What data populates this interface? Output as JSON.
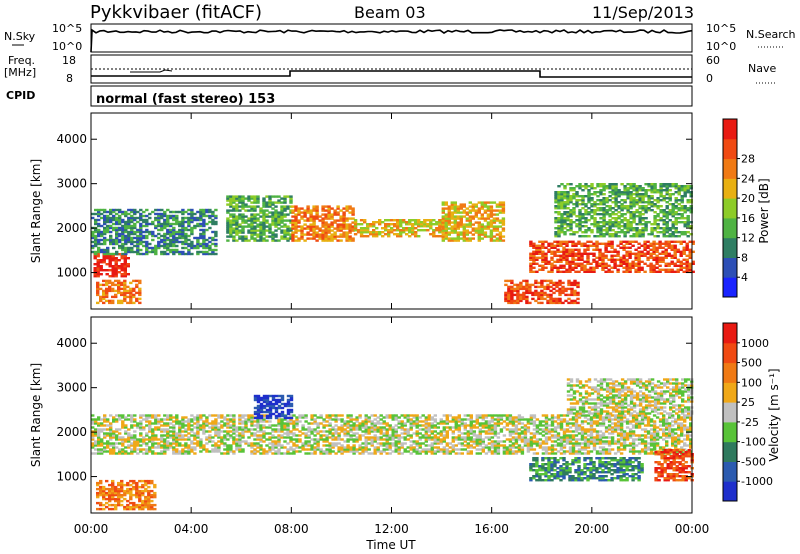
{
  "header": {
    "title": "Pykkvibaer (fitACF)",
    "beam": "Beam 03",
    "date": "11/Sep/2013"
  },
  "status_panels": {
    "nsky_label": "N.Sky",
    "nsky_ticks": [
      "10^5",
      "10^0"
    ],
    "nsearch_label": "N.Search",
    "nsearch_ticks": [
      "10^5",
      "10^0"
    ],
    "freq_label": [
      "Freq.",
      "[MHz]"
    ],
    "freq_ticks": [
      "18",
      "8"
    ],
    "nave_label": "Nave",
    "nave_ticks": [
      "60",
      "0"
    ],
    "cpid_label": "CPID",
    "mode_text": "normal (fast stereo) 153"
  },
  "chart_data": [
    {
      "type": "heatmap",
      "name": "power",
      "ylabel": "Slant Range [km]",
      "xlabel": "Time UT",
      "x_ticks": [
        "00:00",
        "04:00",
        "08:00",
        "12:00",
        "16:00",
        "20:00",
        "00:00"
      ],
      "xlim_hours": [
        0,
        24
      ],
      "y_ticks": [
        "1000",
        "2000",
        "3000",
        "4000"
      ],
      "ylim_km": [
        180,
        4590
      ],
      "colorbar": {
        "label": "Power [dB]",
        "ticks": [
          "4",
          "8",
          "12",
          "16",
          "20",
          "24",
          "28"
        ],
        "colors": [
          "#1a24ff",
          "#2d4fb6",
          "#2f7e63",
          "#4fb343",
          "#8dcc28",
          "#e8b012",
          "#f07a14",
          "#f04a12",
          "#e81a12"
        ]
      },
      "features": [
        {
          "t0": 0.1,
          "t1": 1.5,
          "r0": 900,
          "r1": 1400,
          "level": 8
        },
        {
          "t0": 0.2,
          "t1": 2.0,
          "r0": 300,
          "r1": 800,
          "level": 6
        },
        {
          "t0": 0.0,
          "t1": 5.0,
          "r0": 1400,
          "r1": 2400,
          "level": 2
        },
        {
          "t0": 5.4,
          "t1": 8.0,
          "r0": 1700,
          "r1": 2700,
          "level": 3
        },
        {
          "t0": 8.0,
          "t1": 10.5,
          "r0": 1700,
          "r1": 2500,
          "level": 6
        },
        {
          "t0": 10.5,
          "t1": 14.0,
          "r0": 1800,
          "r1": 2200,
          "level": 5
        },
        {
          "t0": 14.0,
          "t1": 16.5,
          "r0": 1700,
          "r1": 2600,
          "level": 5
        },
        {
          "t0": 17.5,
          "t1": 24.0,
          "r0": 1000,
          "r1": 1700,
          "level": 7
        },
        {
          "t0": 18.5,
          "t1": 24.0,
          "r0": 1800,
          "r1": 3000,
          "level": 3
        },
        {
          "t0": 16.5,
          "t1": 19.5,
          "r0": 300,
          "r1": 800,
          "level": 7
        }
      ]
    },
    {
      "type": "heatmap",
      "name": "velocity",
      "ylabel": "Slant Range [km]",
      "xlabel": "Time UT",
      "x_ticks": [
        "00:00",
        "04:00",
        "08:00",
        "12:00",
        "16:00",
        "20:00",
        "00:00"
      ],
      "xlim_hours": [
        0,
        24
      ],
      "y_ticks": [
        "1000",
        "2000",
        "3000",
        "4000"
      ],
      "ylim_km": [
        180,
        4590
      ],
      "colorbar": {
        "label": "Velocity [m s⁻¹]",
        "ticks": [
          "1000",
          "500",
          "100",
          "25",
          "-25",
          "-100",
          "-500",
          "-1000"
        ],
        "colors": [
          "#1e2fcc",
          "#2b5bb0",
          "#2f7a5e",
          "#58c338",
          "#c0c0c0",
          "#f0a818",
          "#f07a14",
          "#f04a12",
          "#e81a12"
        ]
      },
      "features": [
        {
          "t0": 0.0,
          "t1": 24.0,
          "r0": 1500,
          "r1": 2400,
          "level": 4
        },
        {
          "t0": 6.5,
          "t1": 8.0,
          "r0": 2300,
          "r1": 2800,
          "level": 0
        },
        {
          "t0": 17.5,
          "t1": 22.0,
          "r0": 900,
          "r1": 1400,
          "level": 2
        },
        {
          "t0": 19.0,
          "t1": 24.0,
          "r0": 2400,
          "r1": 3200,
          "level": 4
        },
        {
          "t0": 0.2,
          "t1": 2.5,
          "r0": 250,
          "r1": 900,
          "level": 6
        },
        {
          "t0": 22.5,
          "t1": 24.0,
          "r0": 900,
          "r1": 1600,
          "level": 7
        }
      ]
    }
  ]
}
